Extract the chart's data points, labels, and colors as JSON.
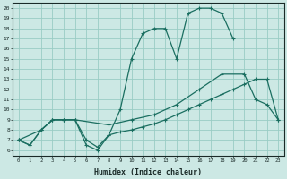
{
  "xlabel": "Humidex (Indice chaleur)",
  "bg_color": "#cce8e4",
  "grid_color": "#99ccc4",
  "line_color": "#1a6e60",
  "xlim": [
    -0.5,
    23.5
  ],
  "ylim": [
    5.5,
    20.5
  ],
  "line1_x": [
    0,
    1,
    2,
    3,
    4,
    5,
    6,
    7,
    8,
    9,
    10,
    11,
    12,
    13,
    14,
    15,
    16,
    17,
    18,
    19
  ],
  "line1_y": [
    7,
    6.5,
    8,
    9,
    9,
    9,
    6.5,
    6,
    7.5,
    10,
    15,
    17.5,
    18,
    18,
    15,
    19.5,
    20,
    20,
    19.5,
    17
  ],
  "line2_x": [
    0,
    2,
    3,
    4,
    5,
    8,
    10,
    12,
    14,
    16,
    18,
    20,
    21,
    22,
    23
  ],
  "line2_y": [
    7,
    8,
    9,
    9,
    9,
    8.5,
    9,
    9.5,
    10.5,
    12,
    13.5,
    13.5,
    11,
    10.5,
    9
  ],
  "line3_x": [
    0,
    1,
    2,
    3,
    4,
    5,
    6,
    7,
    8,
    9,
    10,
    11,
    12,
    13,
    14,
    15,
    16,
    17,
    18,
    19,
    20,
    21,
    22,
    23
  ],
  "line3_y": [
    7,
    6.5,
    8,
    9,
    9,
    9,
    7,
    6.3,
    7.5,
    7.8,
    8,
    8.3,
    8.6,
    9,
    9.5,
    10,
    10.5,
    11,
    11.5,
    12,
    12.5,
    13,
    13,
    9
  ]
}
